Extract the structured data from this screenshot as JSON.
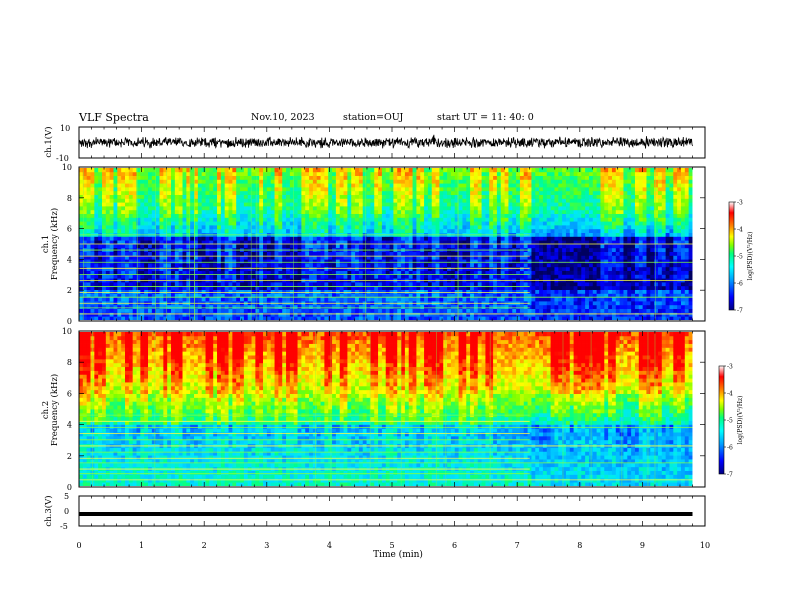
{
  "header": {
    "title": "VLF Spectra",
    "date": "Nov.10, 2023",
    "station": "station=OUJ",
    "start": "start  UT  =   11: 40: 0"
  },
  "colors": {
    "background": "#ffffff",
    "axis": "#000000",
    "colormap": [
      "#000080",
      "#0000ff",
      "#00a0ff",
      "#00ffff",
      "#00ff80",
      "#80ff00",
      "#ffff00",
      "#ff8000",
      "#ff0000",
      "#ffffff"
    ]
  },
  "chart_data": [
    {
      "id": "ch1-waveform",
      "type": "line",
      "ylabel": "ch.1(V)",
      "ylim": [
        -10,
        10
      ],
      "yticks": [
        "10",
        "-10"
      ],
      "xlim": [
        0,
        10
      ],
      "description_values": {
        "mean": 0,
        "approx_amplitude": 3
      }
    },
    {
      "id": "ch1-spectrogram",
      "type": "heatmap",
      "ylabel_line1": "ch.1",
      "ylabel_line2": "Frequency (kHz)",
      "ylim": [
        0,
        10
      ],
      "yticks": [
        "0",
        "2",
        "4",
        "6",
        "8",
        "10"
      ],
      "xlim": [
        0,
        9.8
      ],
      "colorbar": {
        "label": "log(PSD)(V²/Hz)",
        "range": [
          -7,
          -3
        ],
        "ticks": [
          "-3",
          "-4",
          "-5",
          "-6",
          "-7"
        ]
      },
      "data_change_time_min": 7.2,
      "horizontal_lines_khz": [
        0.4,
        0.8,
        1.1,
        1.5,
        1.8,
        2.2,
        2.6,
        3.0,
        3.4,
        3.8,
        4.2,
        4.6,
        5.0,
        5.6
      ]
    },
    {
      "id": "ch2-spectrogram",
      "type": "heatmap",
      "ylabel_line1": "ch.2",
      "ylabel_line2": "Frequency (kHz)",
      "ylim": [
        0,
        10
      ],
      "yticks": [
        "0",
        "2",
        "4",
        "6",
        "8",
        "10"
      ],
      "xlim": [
        0,
        9.8
      ],
      "colorbar": {
        "label": "log(PSD)(V²/Hz)",
        "range": [
          -7,
          -3
        ],
        "ticks": [
          "-3",
          "-4",
          "-5",
          "-6",
          "-7"
        ]
      },
      "data_change_time_min": 7.2,
      "horizontal_lines_khz": [
        0.4,
        0.8,
        1.1,
        1.5,
        1.8,
        2.2,
        2.6,
        3.0,
        3.4,
        3.8,
        4.2,
        4.6
      ]
    },
    {
      "id": "ch3-waveform",
      "type": "line",
      "ylabel": "ch.3(V)",
      "ylim": [
        -5,
        5
      ],
      "yticks": [
        "5",
        "0",
        "-5"
      ],
      "xlim": [
        0,
        10
      ],
      "constant_value": -1,
      "xlabel": "Time  (min)",
      "xticks": [
        "0",
        "1",
        "2",
        "3",
        "4",
        "5",
        "6",
        "7",
        "8",
        "9",
        "10"
      ]
    }
  ]
}
